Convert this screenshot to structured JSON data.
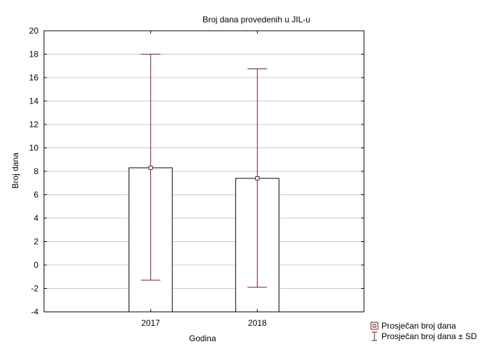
{
  "chart_data": {
    "type": "bar",
    "title": "Broj dana provedenih u JIL-u",
    "xlabel": "Godina",
    "ylabel": "Broj dana",
    "categories": [
      "2017",
      "2018"
    ],
    "ylim": [
      -4,
      20
    ],
    "yticks": [
      -4,
      -2,
      0,
      2,
      4,
      6,
      8,
      10,
      12,
      14,
      16,
      18,
      20
    ],
    "grid": true,
    "legend_position": "bottom-right",
    "series": [
      {
        "name": "Prosječan broj dana",
        "values": [
          8.3,
          7.4
        ],
        "error_lower": [
          -1.3,
          -1.9
        ],
        "error_upper": [
          18.0,
          16.75
        ]
      }
    ],
    "legend": {
      "mean_label": "Prosječan broj dana",
      "sd_label": "Prosječan broj dana ± SD"
    },
    "colors": {
      "bar_fill": "#ffffff",
      "bar_stroke": "#000000",
      "error": "#7a1a1a",
      "grid": "#c8c8c8",
      "axis": "#000000"
    }
  }
}
